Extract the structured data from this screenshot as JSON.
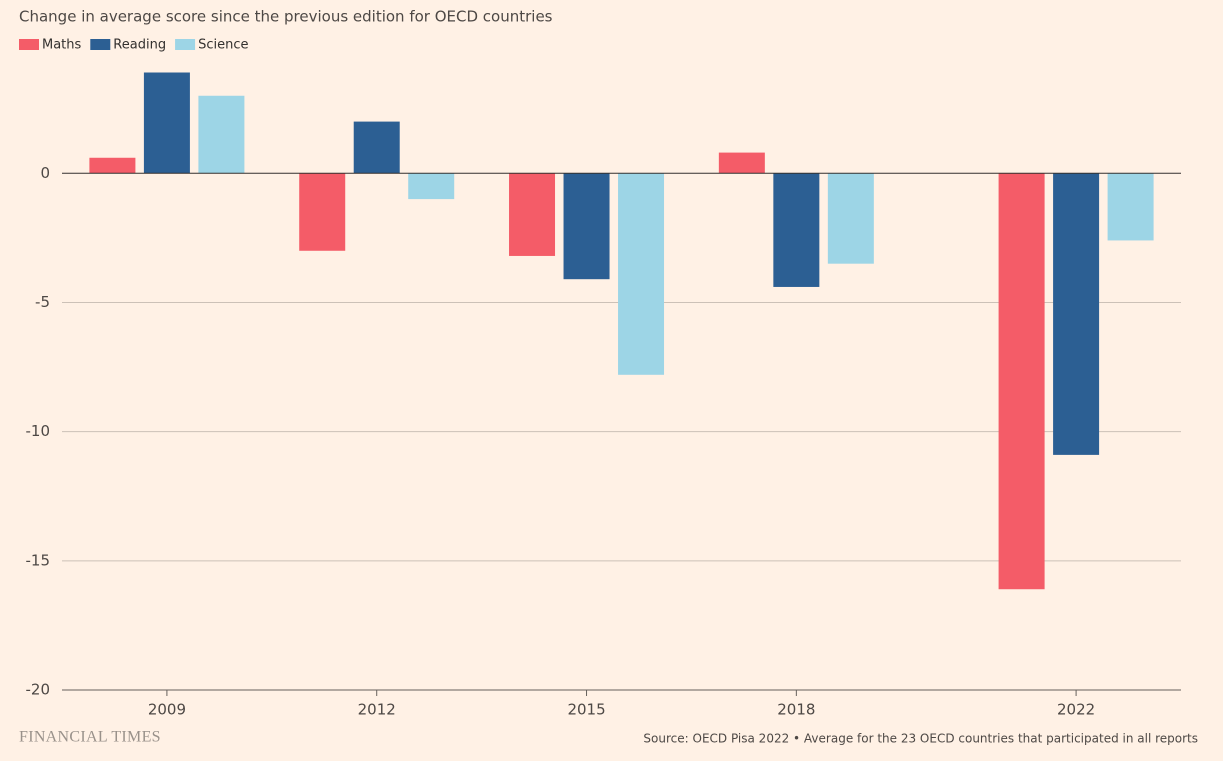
{
  "chart_data": {
    "type": "bar",
    "title": "Change in average score since the previous edition for OECD countries",
    "x": [
      2009,
      2012,
      2015,
      2018,
      2022
    ],
    "xlim": [
      2007.5,
      2023.5
    ],
    "xticks": [
      2009,
      2012,
      2015,
      2018,
      2022
    ],
    "series": [
      {
        "name": "Maths",
        "color": "#f45c68",
        "values": [
          0.6,
          -3.0,
          -3.2,
          0.8,
          -16.1
        ]
      },
      {
        "name": "Reading",
        "color": "#2c5f93",
        "values": [
          3.9,
          2.0,
          -4.1,
          -4.4,
          -10.9
        ]
      },
      {
        "name": "Science",
        "color": "#9dd5e6",
        "values": [
          3.0,
          -1.0,
          -7.8,
          -3.5,
          -2.6
        ]
      }
    ],
    "ylim": [
      -20,
      4.5
    ],
    "yticks": [
      0,
      -5,
      -10,
      -15,
      -20
    ],
    "grid": true,
    "legend": "top-left",
    "source": "Source: OECD Pisa 2022 • Average for the 23 OECD countries that participated in all reports",
    "brand": "FINANCIAL TIMES"
  }
}
